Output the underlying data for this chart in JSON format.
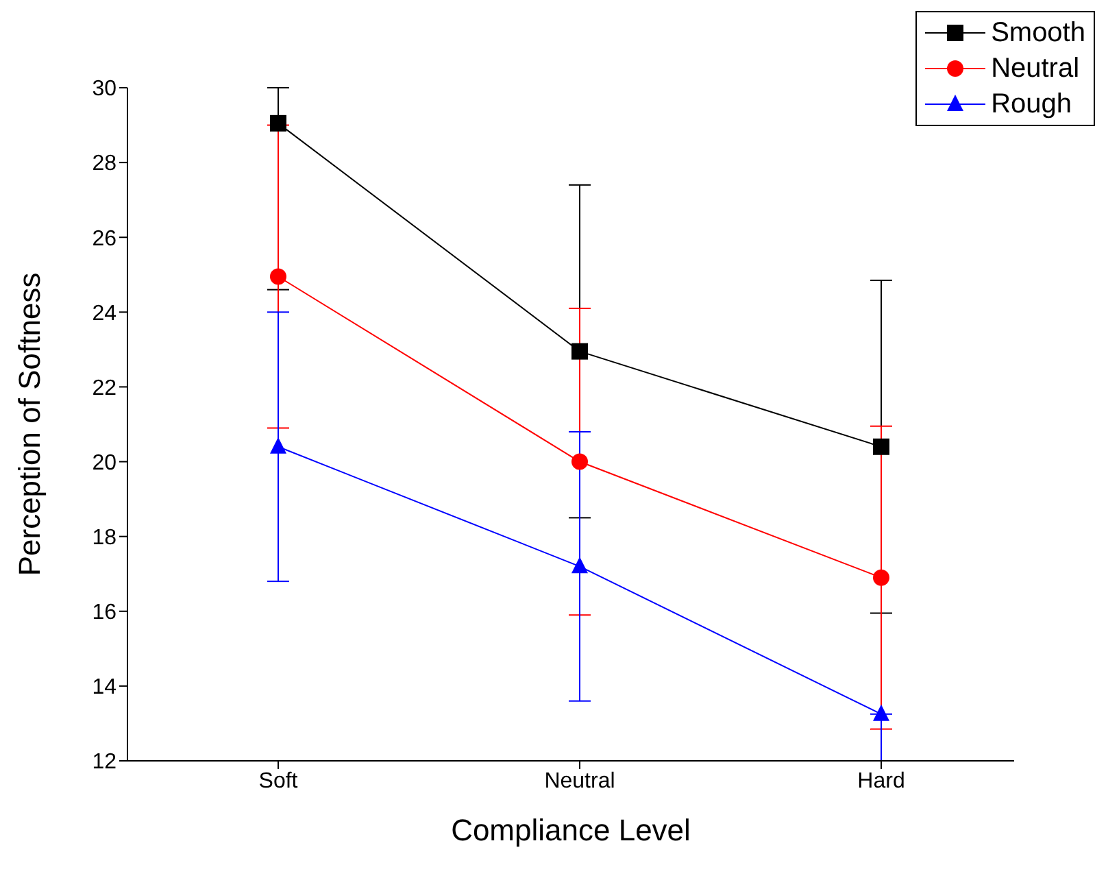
{
  "chart_data": {
    "type": "line",
    "xlabel": "Compliance Level",
    "ylabel": "Perception of Softness",
    "categories": [
      "Soft",
      "Neutral",
      "Hard"
    ],
    "series": [
      {
        "name": "Smooth",
        "color": "#000000",
        "marker": "square",
        "values": [
          29.05,
          22.95,
          20.4
        ],
        "errors": [
          [
            24.6,
            30
          ],
          4.45,
          4.45
        ]
      },
      {
        "name": "Neutral",
        "color": "#ff0000",
        "marker": "circle",
        "values": [
          24.95,
          20.0,
          16.9
        ],
        "errors": [
          4.05,
          4.1,
          4.05
        ]
      },
      {
        "name": "Rough",
        "color": "#0000ff",
        "marker": "triangle",
        "values": [
          20.4,
          17.2,
          13.25
        ],
        "errors": [
          3.6,
          3.6,
          [
            12,
            13.25
          ]
        ]
      }
    ],
    "ylim": [
      12,
      30
    ],
    "yticks": [
      12,
      14,
      16,
      18,
      20,
      22,
      24,
      26,
      28,
      30
    ],
    "grid": false,
    "legend": "top right"
  }
}
